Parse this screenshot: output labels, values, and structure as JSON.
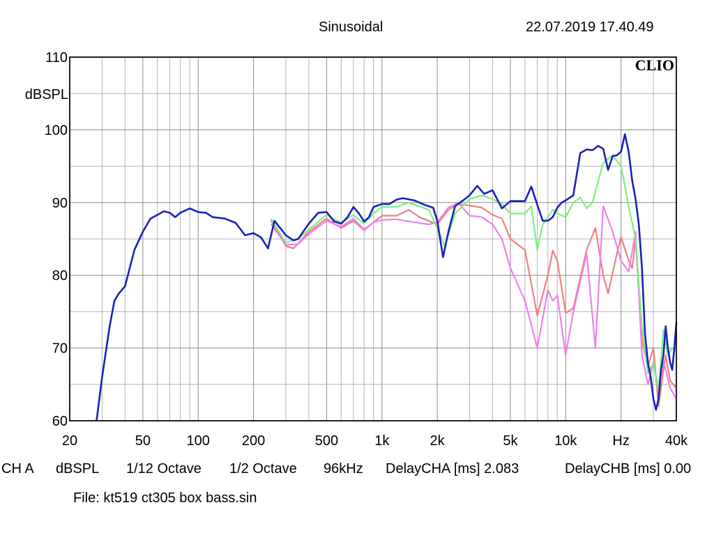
{
  "header": {
    "mode": "Sinusoidal",
    "timestamp": "22.07.2019 17.40.49"
  },
  "brand": "CLIO",
  "footer": {
    "channel": "CH A",
    "unit": "dBSPL",
    "smoothing": "1/12 Octave",
    "resolution": "1/2 Octave",
    "sample_rate": "96kHz",
    "delay_cha": "DelayCHA [ms] 2.083",
    "delay_chb": "DelayCHB [ms] 0.00",
    "file": "File: kt519 ct305 box bass.sin"
  },
  "chart_data": {
    "type": "line",
    "x_scale": "log",
    "xlim": [
      20,
      40000
    ],
    "ylim": [
      60,
      110
    ],
    "ylabel": "dBSPL",
    "xlabel": "Hz",
    "grid": true,
    "y_ticks": [
      60,
      70,
      80,
      90,
      100,
      110
    ],
    "x_ticks": [
      {
        "value": 20,
        "label": "20"
      },
      {
        "value": 50,
        "label": "50"
      },
      {
        "value": 100,
        "label": "100"
      },
      {
        "value": 200,
        "label": "200"
      },
      {
        "value": 500,
        "label": "500"
      },
      {
        "value": 1000,
        "label": "1k"
      },
      {
        "value": 2000,
        "label": "2k"
      },
      {
        "value": 5000,
        "label": "5k"
      },
      {
        "value": 10000,
        "label": "10k"
      },
      {
        "value": 20000,
        "label": "Hz"
      },
      {
        "value": 40000,
        "label": "40k"
      }
    ],
    "series": [
      {
        "color": "#ee8080",
        "points": [
          [
            250,
            87.5
          ],
          [
            300,
            84
          ],
          [
            330,
            83.7
          ],
          [
            400,
            86
          ],
          [
            500,
            87.8
          ],
          [
            600,
            86.5
          ],
          [
            700,
            87.5
          ],
          [
            800,
            86.2
          ],
          [
            900,
            87.3
          ],
          [
            1000,
            88.2
          ],
          [
            1200,
            88.2
          ],
          [
            1400,
            89
          ],
          [
            1600,
            88
          ],
          [
            2000,
            87
          ],
          [
            2300,
            89
          ],
          [
            2600,
            89.8
          ],
          [
            3000,
            89.6
          ],
          [
            3500,
            89.3
          ],
          [
            4000,
            88.3
          ],
          [
            4500,
            87.8
          ],
          [
            5000,
            85
          ],
          [
            6000,
            83.5
          ],
          [
            7000,
            74.5
          ],
          [
            8000,
            80
          ],
          [
            8500,
            83.4
          ],
          [
            9000,
            82
          ],
          [
            10000,
            74.8
          ],
          [
            11000,
            75.5
          ],
          [
            13000,
            83.5
          ],
          [
            14500,
            86.5
          ],
          [
            16000,
            80
          ],
          [
            17000,
            77.5
          ],
          [
            19000,
            83
          ],
          [
            20000,
            85.3
          ],
          [
            22000,
            82
          ],
          [
            23000,
            81
          ],
          [
            24000,
            85
          ],
          [
            26000,
            71
          ],
          [
            28000,
            67.5
          ],
          [
            30000,
            70
          ],
          [
            32000,
            62
          ],
          [
            34000,
            67
          ],
          [
            35000,
            69
          ],
          [
            37000,
            65.5
          ],
          [
            40000,
            64.5
          ]
        ]
      },
      {
        "color": "#ee80ee",
        "points": [
          [
            250,
            87
          ],
          [
            300,
            84.2
          ],
          [
            350,
            84.3
          ],
          [
            400,
            85.7
          ],
          [
            500,
            87.5
          ],
          [
            600,
            86.7
          ],
          [
            700,
            87.8
          ],
          [
            800,
            86.3
          ],
          [
            900,
            87.3
          ],
          [
            1000,
            87.6
          ],
          [
            1200,
            87.7
          ],
          [
            1500,
            87.3
          ],
          [
            1800,
            87
          ],
          [
            2000,
            87.3
          ],
          [
            2300,
            89.3
          ],
          [
            2600,
            90
          ],
          [
            3000,
            88.2
          ],
          [
            3500,
            88
          ],
          [
            4000,
            87
          ],
          [
            4500,
            85
          ],
          [
            5000,
            81
          ],
          [
            6000,
            76.5
          ],
          [
            7000,
            70
          ],
          [
            8000,
            78
          ],
          [
            8500,
            76.5
          ],
          [
            9000,
            77.2
          ],
          [
            10000,
            69
          ],
          [
            11000,
            75
          ],
          [
            13000,
            83
          ],
          [
            14500,
            70
          ],
          [
            16000,
            89.5
          ],
          [
            18000,
            86
          ],
          [
            20000,
            82
          ],
          [
            22000,
            80.5
          ],
          [
            24000,
            86
          ],
          [
            26000,
            69
          ],
          [
            28000,
            65
          ],
          [
            30000,
            68
          ],
          [
            32000,
            64.5
          ],
          [
            34000,
            68
          ],
          [
            35000,
            67
          ],
          [
            37000,
            64.5
          ],
          [
            40000,
            63
          ]
        ]
      },
      {
        "color": "#80ee80",
        "points": [
          [
            250,
            87.7
          ],
          [
            300,
            84.5
          ],
          [
            350,
            85
          ],
          [
            400,
            86.3
          ],
          [
            500,
            88.3
          ],
          [
            600,
            87.2
          ],
          [
            700,
            88.3
          ],
          [
            800,
            87.1
          ],
          [
            900,
            88.5
          ],
          [
            1000,
            89.4
          ],
          [
            1200,
            89.4
          ],
          [
            1400,
            90
          ],
          [
            1800,
            89
          ],
          [
            2000,
            86.5
          ],
          [
            2200,
            84
          ],
          [
            2500,
            88.5
          ],
          [
            3000,
            90.5
          ],
          [
            3500,
            91
          ],
          [
            4000,
            90.5
          ],
          [
            4500,
            89.8
          ],
          [
            5000,
            88.5
          ],
          [
            6000,
            88.5
          ],
          [
            6500,
            89.5
          ],
          [
            7000,
            83.5
          ],
          [
            7500,
            87
          ],
          [
            8000,
            88
          ],
          [
            8500,
            89
          ],
          [
            9000,
            88.5
          ],
          [
            10000,
            88
          ],
          [
            11000,
            90
          ],
          [
            12000,
            90.7
          ],
          [
            13000,
            89.2
          ],
          [
            14000,
            90
          ],
          [
            16000,
            95.5
          ],
          [
            18000,
            96.5
          ],
          [
            20000,
            95
          ],
          [
            22000,
            89.5
          ],
          [
            24000,
            85
          ],
          [
            26000,
            73
          ],
          [
            28000,
            66.5
          ],
          [
            30000,
            68
          ],
          [
            32000,
            64
          ],
          [
            34000,
            72.5
          ],
          [
            36000,
            69
          ],
          [
            38000,
            70
          ],
          [
            40000,
            69.5
          ]
        ]
      },
      {
        "color": "#1a22b8",
        "points": [
          [
            28,
            60
          ],
          [
            30,
            66
          ],
          [
            33,
            73
          ],
          [
            35,
            76.5
          ],
          [
            37,
            77.5
          ],
          [
            40,
            78.5
          ],
          [
            45,
            83.5
          ],
          [
            50,
            86
          ],
          [
            55,
            87.8
          ],
          [
            60,
            88.3
          ],
          [
            65,
            88.8
          ],
          [
            70,
            88.6
          ],
          [
            75,
            88
          ],
          [
            80,
            88.6
          ],
          [
            90,
            89.2
          ],
          [
            100,
            88.7
          ],
          [
            110,
            88.6
          ],
          [
            120,
            88
          ],
          [
            140,
            87.8
          ],
          [
            160,
            87.2
          ],
          [
            180,
            85.5
          ],
          [
            200,
            85.8
          ],
          [
            220,
            85.2
          ],
          [
            240,
            83.7
          ],
          [
            260,
            87.5
          ],
          [
            300,
            85.5
          ],
          [
            330,
            84.8
          ],
          [
            350,
            85
          ],
          [
            400,
            87.1
          ],
          [
            450,
            88.6
          ],
          [
            500,
            88.7
          ],
          [
            550,
            87.4
          ],
          [
            600,
            87.1
          ],
          [
            650,
            88
          ],
          [
            700,
            89.4
          ],
          [
            750,
            88.5
          ],
          [
            800,
            87.4
          ],
          [
            850,
            88
          ],
          [
            900,
            89.4
          ],
          [
            1000,
            89.8
          ],
          [
            1100,
            89.8
          ],
          [
            1200,
            90.4
          ],
          [
            1300,
            90.6
          ],
          [
            1500,
            90.3
          ],
          [
            1700,
            89.7
          ],
          [
            1900,
            89.3
          ],
          [
            2000,
            87.5
          ],
          [
            2150,
            82.5
          ],
          [
            2300,
            86
          ],
          [
            2500,
            89.5
          ],
          [
            2800,
            90.4
          ],
          [
            3000,
            91
          ],
          [
            3300,
            92.3
          ],
          [
            3600,
            91.2
          ],
          [
            4000,
            91.7
          ],
          [
            4500,
            89.2
          ],
          [
            5000,
            90.2
          ],
          [
            6000,
            90.2
          ],
          [
            6500,
            92.2
          ],
          [
            7000,
            89.7
          ],
          [
            7500,
            87.5
          ],
          [
            8000,
            87.5
          ],
          [
            8500,
            88
          ],
          [
            9000,
            89.3
          ],
          [
            9500,
            90
          ],
          [
            10000,
            90.3
          ],
          [
            11000,
            91
          ],
          [
            12000,
            96.8
          ],
          [
            13000,
            97.3
          ],
          [
            14000,
            97.2
          ],
          [
            15000,
            97.8
          ],
          [
            16000,
            97.4
          ],
          [
            17000,
            94.5
          ],
          [
            18000,
            96.4
          ],
          [
            19000,
            96.5
          ],
          [
            20000,
            97
          ],
          [
            21000,
            99.4
          ],
          [
            22000,
            97
          ],
          [
            23000,
            93
          ],
          [
            24000,
            90.5
          ],
          [
            25000,
            87
          ],
          [
            26000,
            81
          ],
          [
            27000,
            72
          ],
          [
            28000,
            68
          ],
          [
            29000,
            66
          ],
          [
            30000,
            63
          ],
          [
            31000,
            61.5
          ],
          [
            32000,
            63
          ],
          [
            33000,
            67
          ],
          [
            34000,
            69
          ],
          [
            35000,
            73
          ],
          [
            36000,
            70
          ],
          [
            37000,
            68
          ],
          [
            38000,
            67
          ],
          [
            39000,
            70
          ],
          [
            40000,
            73.5
          ]
        ]
      }
    ]
  }
}
